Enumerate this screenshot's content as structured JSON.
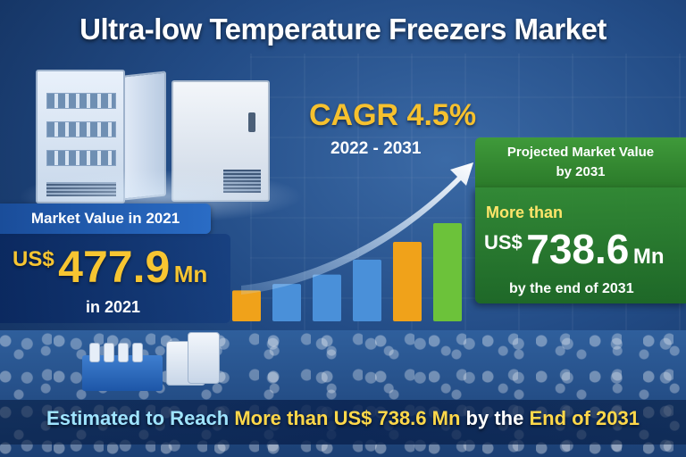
{
  "title": "Ultra-low Temperature Freezers Market",
  "left": {
    "label": "Market Value in 2021",
    "currency": "US$",
    "value": "477.9",
    "unit": "Mn",
    "sub": "in 2021"
  },
  "cagr": {
    "text": "CAGR 4.5%",
    "years": "2022 - 2031"
  },
  "right": {
    "label_line1": "Projected Market Value",
    "label_line2": "by 2031",
    "prefix": "More than",
    "currency": "US$",
    "value": "738.6",
    "unit": "Mn",
    "suffix": "by the end of 2031"
  },
  "bottom": {
    "part1": "Estimated to Reach",
    "part2": "More than US$ 738.6 Mn",
    "part3": "by the",
    "part4": "End of 2031"
  },
  "chart_data": {
    "type": "bar",
    "categories": [
      "",
      "",
      "",
      "",
      "",
      ""
    ],
    "values": [
      33,
      40,
      50,
      66,
      85,
      105
    ],
    "colors": [
      "#f0a21a",
      "#4a90d9",
      "#4a90d9",
      "#4a90d9",
      "#f0a21a",
      "#6cc23a"
    ],
    "arrow": true,
    "title": "",
    "xlabel": "",
    "ylabel": ""
  },
  "colors": {
    "gold": "#f6c12e",
    "green": "#3f9a3a",
    "blue": "#2a6cc5"
  }
}
